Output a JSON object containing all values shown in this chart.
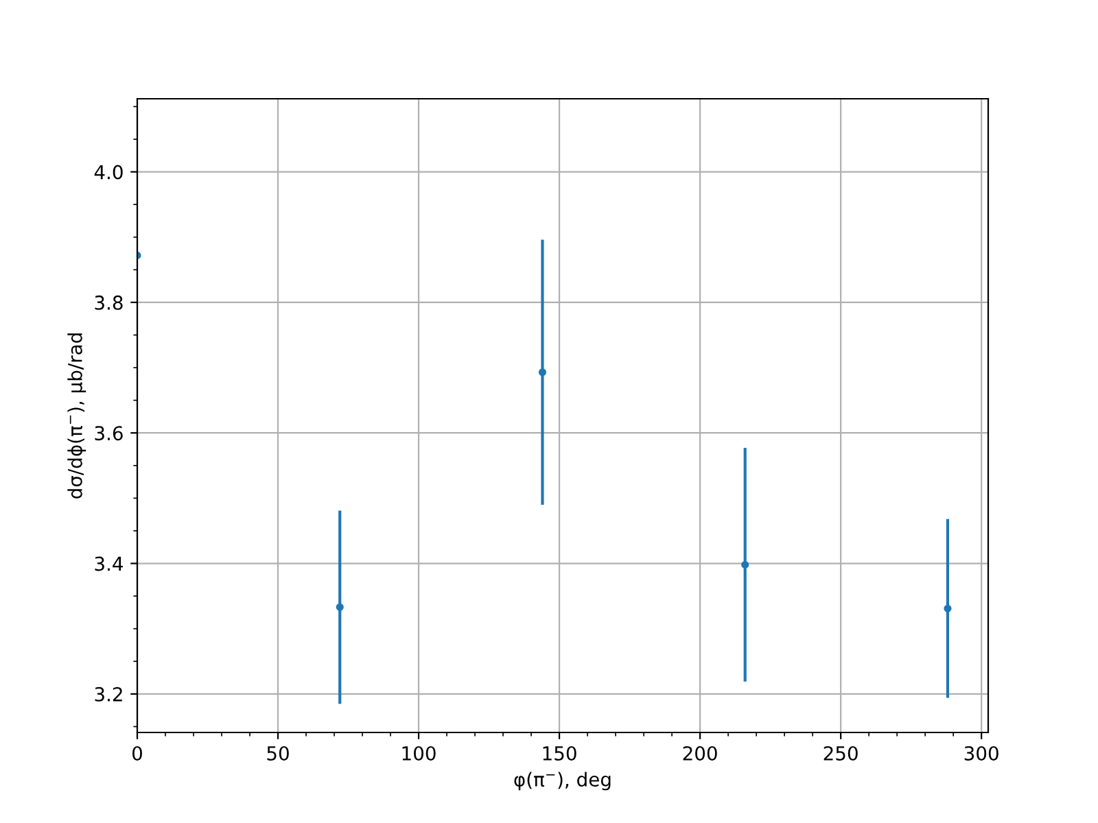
{
  "chart_data": {
    "type": "scatter",
    "xlabel": "φ(π$^{−}$), deg",
    "ylabel": "dσ/dϕ(π$^{−}$), μb/rad",
    "x": [
      0,
      72,
      144,
      216,
      288
    ],
    "series": [
      {
        "color": "#1f77b4",
        "values": [
          3.872,
          3.333,
          3.693,
          3.398,
          3.331
        ],
        "errors": [
          null,
          0.148,
          0.203,
          0.179,
          0.137
        ]
      }
    ],
    "xlim": [
      0,
      302.4
    ],
    "ylim": [
      3.141,
      4.112
    ],
    "xticks": [
      0,
      50,
      100,
      150,
      200,
      250,
      300
    ],
    "yticks": [
      {
        "value": 3.2,
        "label": "3.2"
      },
      {
        "value": 3.4,
        "label": "3.4"
      },
      {
        "value": 3.6,
        "label": "3.6"
      },
      {
        "value": 3.8,
        "label": "3.8"
      },
      {
        "value": 4.0,
        "label": "4.0"
      }
    ],
    "grid": true,
    "marker": "circle"
  }
}
